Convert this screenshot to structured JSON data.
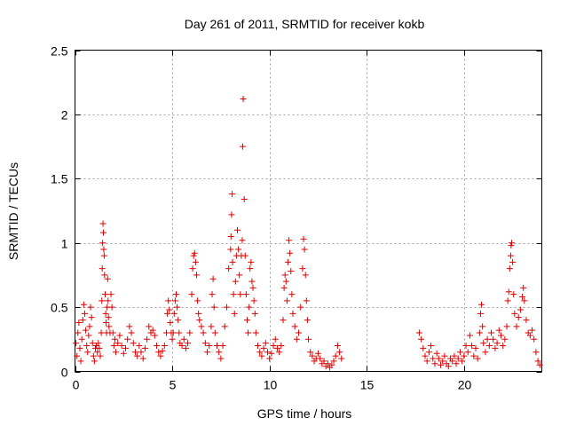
{
  "chart_data": {
    "type": "scatter",
    "title": "Day 261 of 2011, SRMTID for receiver kokb",
    "xlabel": "GPS time / hours",
    "ylabel": "SRMTID / TECUs",
    "xlim": [
      0,
      24
    ],
    "ylim": [
      0,
      2.5
    ],
    "x_ticks": [
      0,
      5,
      10,
      15,
      20
    ],
    "x_tick_labels": [
      "0",
      "5",
      "10",
      "15",
      "20"
    ],
    "y_ticks": [
      0,
      0.5,
      1,
      1.5,
      2,
      2.5
    ],
    "y_tick_labels": [
      "0",
      "0.5",
      "1",
      "1.5",
      "2",
      "2.5"
    ],
    "grid": true,
    "marker": "+",
    "color": "#e00000",
    "series": [
      {
        "name": "SRMTID",
        "points": [
          [
            0.05,
            0.22
          ],
          [
            0.1,
            0.12
          ],
          [
            0.15,
            0.3
          ],
          [
            0.2,
            0.38
          ],
          [
            0.25,
            0.18
          ],
          [
            0.3,
            0.08
          ],
          [
            0.35,
            0.25
          ],
          [
            0.4,
            0.4
          ],
          [
            0.45,
            0.52
          ],
          [
            0.5,
            0.45
          ],
          [
            0.55,
            0.32
          ],
          [
            0.6,
            0.2
          ],
          [
            0.65,
            0.15
          ],
          [
            0.7,
            0.28
          ],
          [
            0.75,
            0.35
          ],
          [
            0.8,
            0.5
          ],
          [
            0.85,
            0.42
          ],
          [
            0.9,
            0.22
          ],
          [
            0.95,
            0.12
          ],
          [
            1.0,
            0.08
          ],
          [
            1.05,
            0.18
          ],
          [
            1.1,
            0.2
          ],
          [
            1.15,
            0.15
          ],
          [
            1.2,
            0.22
          ],
          [
            1.25,
            0.18
          ],
          [
            1.3,
            0.12
          ],
          [
            1.35,
            0.3
          ],
          [
            1.38,
            0.55
          ],
          [
            1.4,
            0.8
          ],
          [
            1.42,
            1.0
          ],
          [
            1.44,
            1.15
          ],
          [
            1.46,
            1.08
          ],
          [
            1.48,
            0.95
          ],
          [
            1.5,
            0.9
          ],
          [
            1.52,
            0.75
          ],
          [
            1.55,
            0.6
          ],
          [
            1.58,
            0.45
          ],
          [
            1.6,
            0.38
          ],
          [
            1.62,
            0.3
          ],
          [
            1.65,
            0.5
          ],
          [
            1.68,
            0.72
          ],
          [
            1.7,
            0.55
          ],
          [
            1.72,
            0.42
          ],
          [
            1.75,
            0.35
          ],
          [
            1.8,
            0.3
          ],
          [
            1.85,
            0.6
          ],
          [
            1.9,
            0.5
          ],
          [
            1.95,
            0.3
          ],
          [
            2.0,
            0.2
          ],
          [
            2.05,
            0.25
          ],
          [
            2.1,
            0.15
          ],
          [
            2.2,
            0.22
          ],
          [
            2.3,
            0.28
          ],
          [
            2.4,
            0.2
          ],
          [
            2.5,
            0.14
          ],
          [
            2.6,
            0.18
          ],
          [
            2.7,
            0.25
          ],
          [
            2.8,
            0.35
          ],
          [
            2.9,
            0.3
          ],
          [
            3.0,
            0.22
          ],
          [
            3.1,
            0.15
          ],
          [
            3.2,
            0.12
          ],
          [
            3.3,
            0.2
          ],
          [
            3.4,
            0.15
          ],
          [
            3.5,
            0.1
          ],
          [
            3.6,
            0.18
          ],
          [
            3.7,
            0.25
          ],
          [
            3.8,
            0.35
          ],
          [
            3.9,
            0.3
          ],
          [
            4.0,
            0.32
          ],
          [
            4.1,
            0.28
          ],
          [
            4.2,
            0.2
          ],
          [
            4.3,
            0.15
          ],
          [
            4.4,
            0.12
          ],
          [
            4.5,
            0.16
          ],
          [
            4.6,
            0.2
          ],
          [
            4.7,
            0.3
          ],
          [
            4.75,
            0.45
          ],
          [
            4.8,
            0.55
          ],
          [
            4.85,
            0.48
          ],
          [
            4.9,
            0.38
          ],
          [
            4.95,
            0.3
          ],
          [
            5.0,
            0.25
          ],
          [
            5.05,
            0.3
          ],
          [
            5.1,
            0.45
          ],
          [
            5.15,
            0.55
          ],
          [
            5.2,
            0.6
          ],
          [
            5.25,
            0.5
          ],
          [
            5.3,
            0.4
          ],
          [
            5.35,
            0.3
          ],
          [
            5.4,
            0.22
          ],
          [
            5.5,
            0.2
          ],
          [
            5.6,
            0.25
          ],
          [
            5.7,
            0.18
          ],
          [
            5.8,
            0.22
          ],
          [
            5.9,
            0.3
          ],
          [
            6.0,
            0.6
          ],
          [
            6.05,
            0.8
          ],
          [
            6.1,
            0.9
          ],
          [
            6.15,
            0.92
          ],
          [
            6.2,
            0.85
          ],
          [
            6.25,
            0.75
          ],
          [
            6.3,
            0.55
          ],
          [
            6.35,
            0.45
          ],
          [
            6.4,
            0.4
          ],
          [
            6.5,
            0.35
          ],
          [
            6.6,
            0.3
          ],
          [
            6.7,
            0.22
          ],
          [
            6.8,
            0.15
          ],
          [
            6.9,
            0.2
          ],
          [
            7.0,
            0.35
          ],
          [
            7.05,
            0.6
          ],
          [
            7.1,
            0.72
          ],
          [
            7.15,
            0.5
          ],
          [
            7.2,
            0.3
          ],
          [
            7.3,
            0.2
          ],
          [
            7.4,
            0.15
          ],
          [
            7.5,
            0.1
          ],
          [
            7.6,
            0.2
          ],
          [
            7.7,
            0.35
          ],
          [
            7.8,
            0.5
          ],
          [
            7.9,
            0.8
          ],
          [
            8.0,
            0.95
          ],
          [
            8.02,
            1.05
          ],
          [
            8.05,
            1.22
          ],
          [
            8.08,
            1.38
          ],
          [
            8.1,
            0.85
          ],
          [
            8.15,
            0.6
          ],
          [
            8.2,
            0.45
          ],
          [
            8.25,
            0.7
          ],
          [
            8.3,
            0.9
          ],
          [
            8.35,
            1.1
          ],
          [
            8.4,
            0.95
          ],
          [
            8.45,
            0.75
          ],
          [
            8.5,
            0.6
          ],
          [
            8.55,
            0.9
          ],
          [
            8.6,
            1.02
          ],
          [
            8.62,
            1.75
          ],
          [
            8.65,
            2.12
          ],
          [
            8.7,
            1.34
          ],
          [
            8.75,
            0.9
          ],
          [
            8.8,
            0.6
          ],
          [
            8.85,
            0.4
          ],
          [
            8.9,
            0.3
          ],
          [
            8.95,
            0.5
          ],
          [
            9.0,
            0.8
          ],
          [
            9.05,
            0.85
          ],
          [
            9.1,
            0.7
          ],
          [
            9.15,
            0.65
          ],
          [
            9.2,
            0.55
          ],
          [
            9.25,
            0.45
          ],
          [
            9.3,
            0.3
          ],
          [
            9.4,
            0.2
          ],
          [
            9.5,
            0.15
          ],
          [
            9.6,
            0.12
          ],
          [
            9.7,
            0.18
          ],
          [
            9.8,
            0.22
          ],
          [
            9.9,
            0.15
          ],
          [
            10.0,
            0.1
          ],
          [
            10.1,
            0.14
          ],
          [
            10.2,
            0.2
          ],
          [
            10.3,
            0.25
          ],
          [
            10.4,
            0.18
          ],
          [
            10.5,
            0.15
          ],
          [
            10.6,
            0.2
          ],
          [
            10.7,
            0.4
          ],
          [
            10.75,
            0.65
          ],
          [
            10.8,
            0.75
          ],
          [
            10.85,
            0.7
          ],
          [
            10.9,
            0.55
          ],
          [
            10.95,
            0.85
          ],
          [
            11.0,
            1.02
          ],
          [
            11.05,
            0.92
          ],
          [
            11.1,
            0.78
          ],
          [
            11.15,
            0.6
          ],
          [
            11.2,
            0.45
          ],
          [
            11.3,
            0.35
          ],
          [
            11.4,
            0.25
          ],
          [
            11.5,
            0.3
          ],
          [
            11.6,
            0.5
          ],
          [
            11.7,
            0.8
          ],
          [
            11.75,
            1.03
          ],
          [
            11.8,
            0.95
          ],
          [
            11.85,
            0.75
          ],
          [
            11.9,
            0.55
          ],
          [
            11.95,
            0.4
          ],
          [
            12.0,
            0.25
          ],
          [
            12.1,
            0.15
          ],
          [
            12.2,
            0.12
          ],
          [
            12.3,
            0.08
          ],
          [
            12.4,
            0.1
          ],
          [
            12.5,
            0.14
          ],
          [
            12.6,
            0.1
          ],
          [
            12.7,
            0.06
          ],
          [
            12.8,
            0.08
          ],
          [
            12.9,
            0.04
          ],
          [
            13.0,
            0.06
          ],
          [
            13.1,
            0.03
          ],
          [
            13.2,
            0.05
          ],
          [
            13.3,
            0.08
          ],
          [
            13.4,
            0.12
          ],
          [
            13.5,
            0.2
          ],
          [
            13.6,
            0.15
          ],
          [
            13.7,
            0.1
          ],
          [
            17.7,
            0.3
          ],
          [
            17.8,
            0.25
          ],
          [
            17.9,
            0.18
          ],
          [
            18.0,
            0.12
          ],
          [
            18.1,
            0.08
          ],
          [
            18.2,
            0.15
          ],
          [
            18.3,
            0.2
          ],
          [
            18.4,
            0.1
          ],
          [
            18.5,
            0.06
          ],
          [
            18.6,
            0.14
          ],
          [
            18.7,
            0.1
          ],
          [
            18.8,
            0.05
          ],
          [
            18.9,
            0.08
          ],
          [
            19.0,
            0.12
          ],
          [
            19.1,
            0.06
          ],
          [
            19.2,
            0.04
          ],
          [
            19.3,
            0.1
          ],
          [
            19.4,
            0.08
          ],
          [
            19.5,
            0.12
          ],
          [
            19.6,
            0.06
          ],
          [
            19.7,
            0.1
          ],
          [
            19.8,
            0.15
          ],
          [
            19.9,
            0.08
          ],
          [
            20.0,
            0.12
          ],
          [
            20.1,
            0.2
          ],
          [
            20.2,
            0.15
          ],
          [
            20.3,
            0.28
          ],
          [
            20.4,
            0.2
          ],
          [
            20.5,
            0.12
          ],
          [
            20.6,
            0.18
          ],
          [
            20.7,
            0.1
          ],
          [
            20.8,
            0.3
          ],
          [
            20.85,
            0.45
          ],
          [
            20.9,
            0.52
          ],
          [
            20.95,
            0.35
          ],
          [
            21.0,
            0.22
          ],
          [
            21.1,
            0.15
          ],
          [
            21.2,
            0.25
          ],
          [
            21.3,
            0.2
          ],
          [
            21.4,
            0.3
          ],
          [
            21.5,
            0.25
          ],
          [
            21.6,
            0.18
          ],
          [
            21.7,
            0.22
          ],
          [
            21.8,
            0.32
          ],
          [
            21.9,
            0.28
          ],
          [
            22.0,
            0.2
          ],
          [
            22.1,
            0.25
          ],
          [
            22.2,
            0.35
          ],
          [
            22.25,
            0.55
          ],
          [
            22.3,
            0.62
          ],
          [
            22.35,
            0.8
          ],
          [
            22.4,
            0.9
          ],
          [
            22.42,
            0.98
          ],
          [
            22.45,
            1.0
          ],
          [
            22.5,
            0.85
          ],
          [
            22.55,
            0.6
          ],
          [
            22.6,
            0.45
          ],
          [
            22.7,
            0.35
          ],
          [
            22.8,
            0.42
          ],
          [
            22.9,
            0.48
          ],
          [
            23.0,
            0.58
          ],
          [
            23.05,
            0.65
          ],
          [
            23.1,
            0.55
          ],
          [
            23.2,
            0.4
          ],
          [
            23.3,
            0.3
          ],
          [
            23.4,
            0.28
          ],
          [
            23.5,
            0.32
          ],
          [
            23.6,
            0.25
          ],
          [
            23.7,
            0.15
          ],
          [
            23.8,
            0.08
          ],
          [
            23.9,
            0.05
          ]
        ]
      }
    ]
  }
}
